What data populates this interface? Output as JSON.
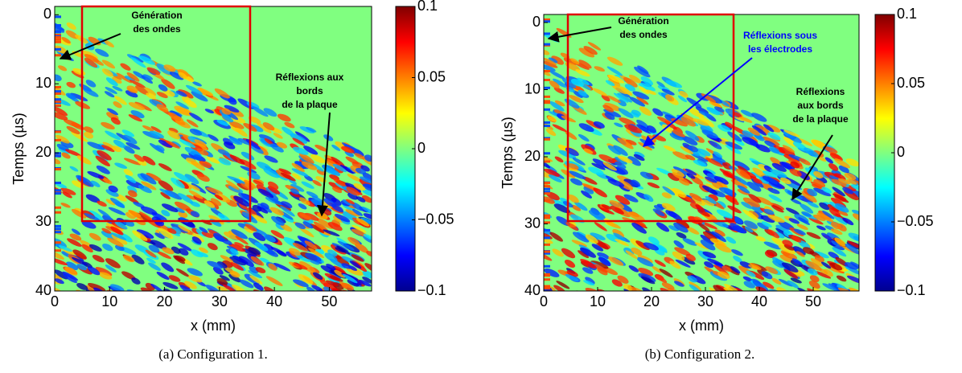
{
  "chart_data": [
    {
      "type": "heatmap",
      "xlabel": "x (mm)",
      "ylabel": "Temps (µs)",
      "xlim": [
        0,
        57.7
      ],
      "ylim": [
        -1.2,
        40
      ],
      "xticks": [
        0,
        10,
        20,
        30,
        40,
        50
      ],
      "yticks": [
        0,
        10,
        20,
        30,
        40
      ],
      "colorbar": {
        "lim": [
          -0.1,
          0.1
        ],
        "ticks": [
          0.1,
          0.05,
          0,
          {
            "value": -0.05,
            "label": "−0.05"
          },
          {
            "value": -0.1,
            "label": "−0.1"
          }
        ]
      },
      "annotations": [
        {
          "lines": [
            "Génération",
            "des ondes"
          ],
          "color": "#000000"
        },
        {
          "lines": [
            "Réflexions aux",
            "bords",
            "de la plaque"
          ],
          "color": "#000000"
        }
      ],
      "caption": "(a) Configuration 1."
    },
    {
      "type": "heatmap",
      "xlabel": "x (mm)",
      "ylabel": "Temps (µs)",
      "xlim": [
        0,
        58.5
      ],
      "ylim": [
        -1.2,
        40
      ],
      "xticks": [
        0,
        10,
        20,
        30,
        40,
        50
      ],
      "yticks": [
        0,
        10,
        20,
        30,
        40
      ],
      "colorbar": {
        "lim": [
          -0.1,
          0.1
        ],
        "ticks": [
          0.1,
          0.05,
          0,
          {
            "value": -0.05,
            "label": "−0.05"
          },
          {
            "value": -0.1,
            "label": "−0.1"
          }
        ]
      },
      "annotations": [
        {
          "lines": [
            "Génération",
            "des ondes"
          ],
          "color": "#000000"
        },
        {
          "lines": [
            "Réflexions sous",
            "les électrodes"
          ],
          "color": "#0000ff"
        },
        {
          "lines": [
            "Réflexions",
            "aux bords",
            "de la plaque"
          ],
          "color": "#000000"
        }
      ],
      "caption": "(b) Configuration 2."
    }
  ]
}
